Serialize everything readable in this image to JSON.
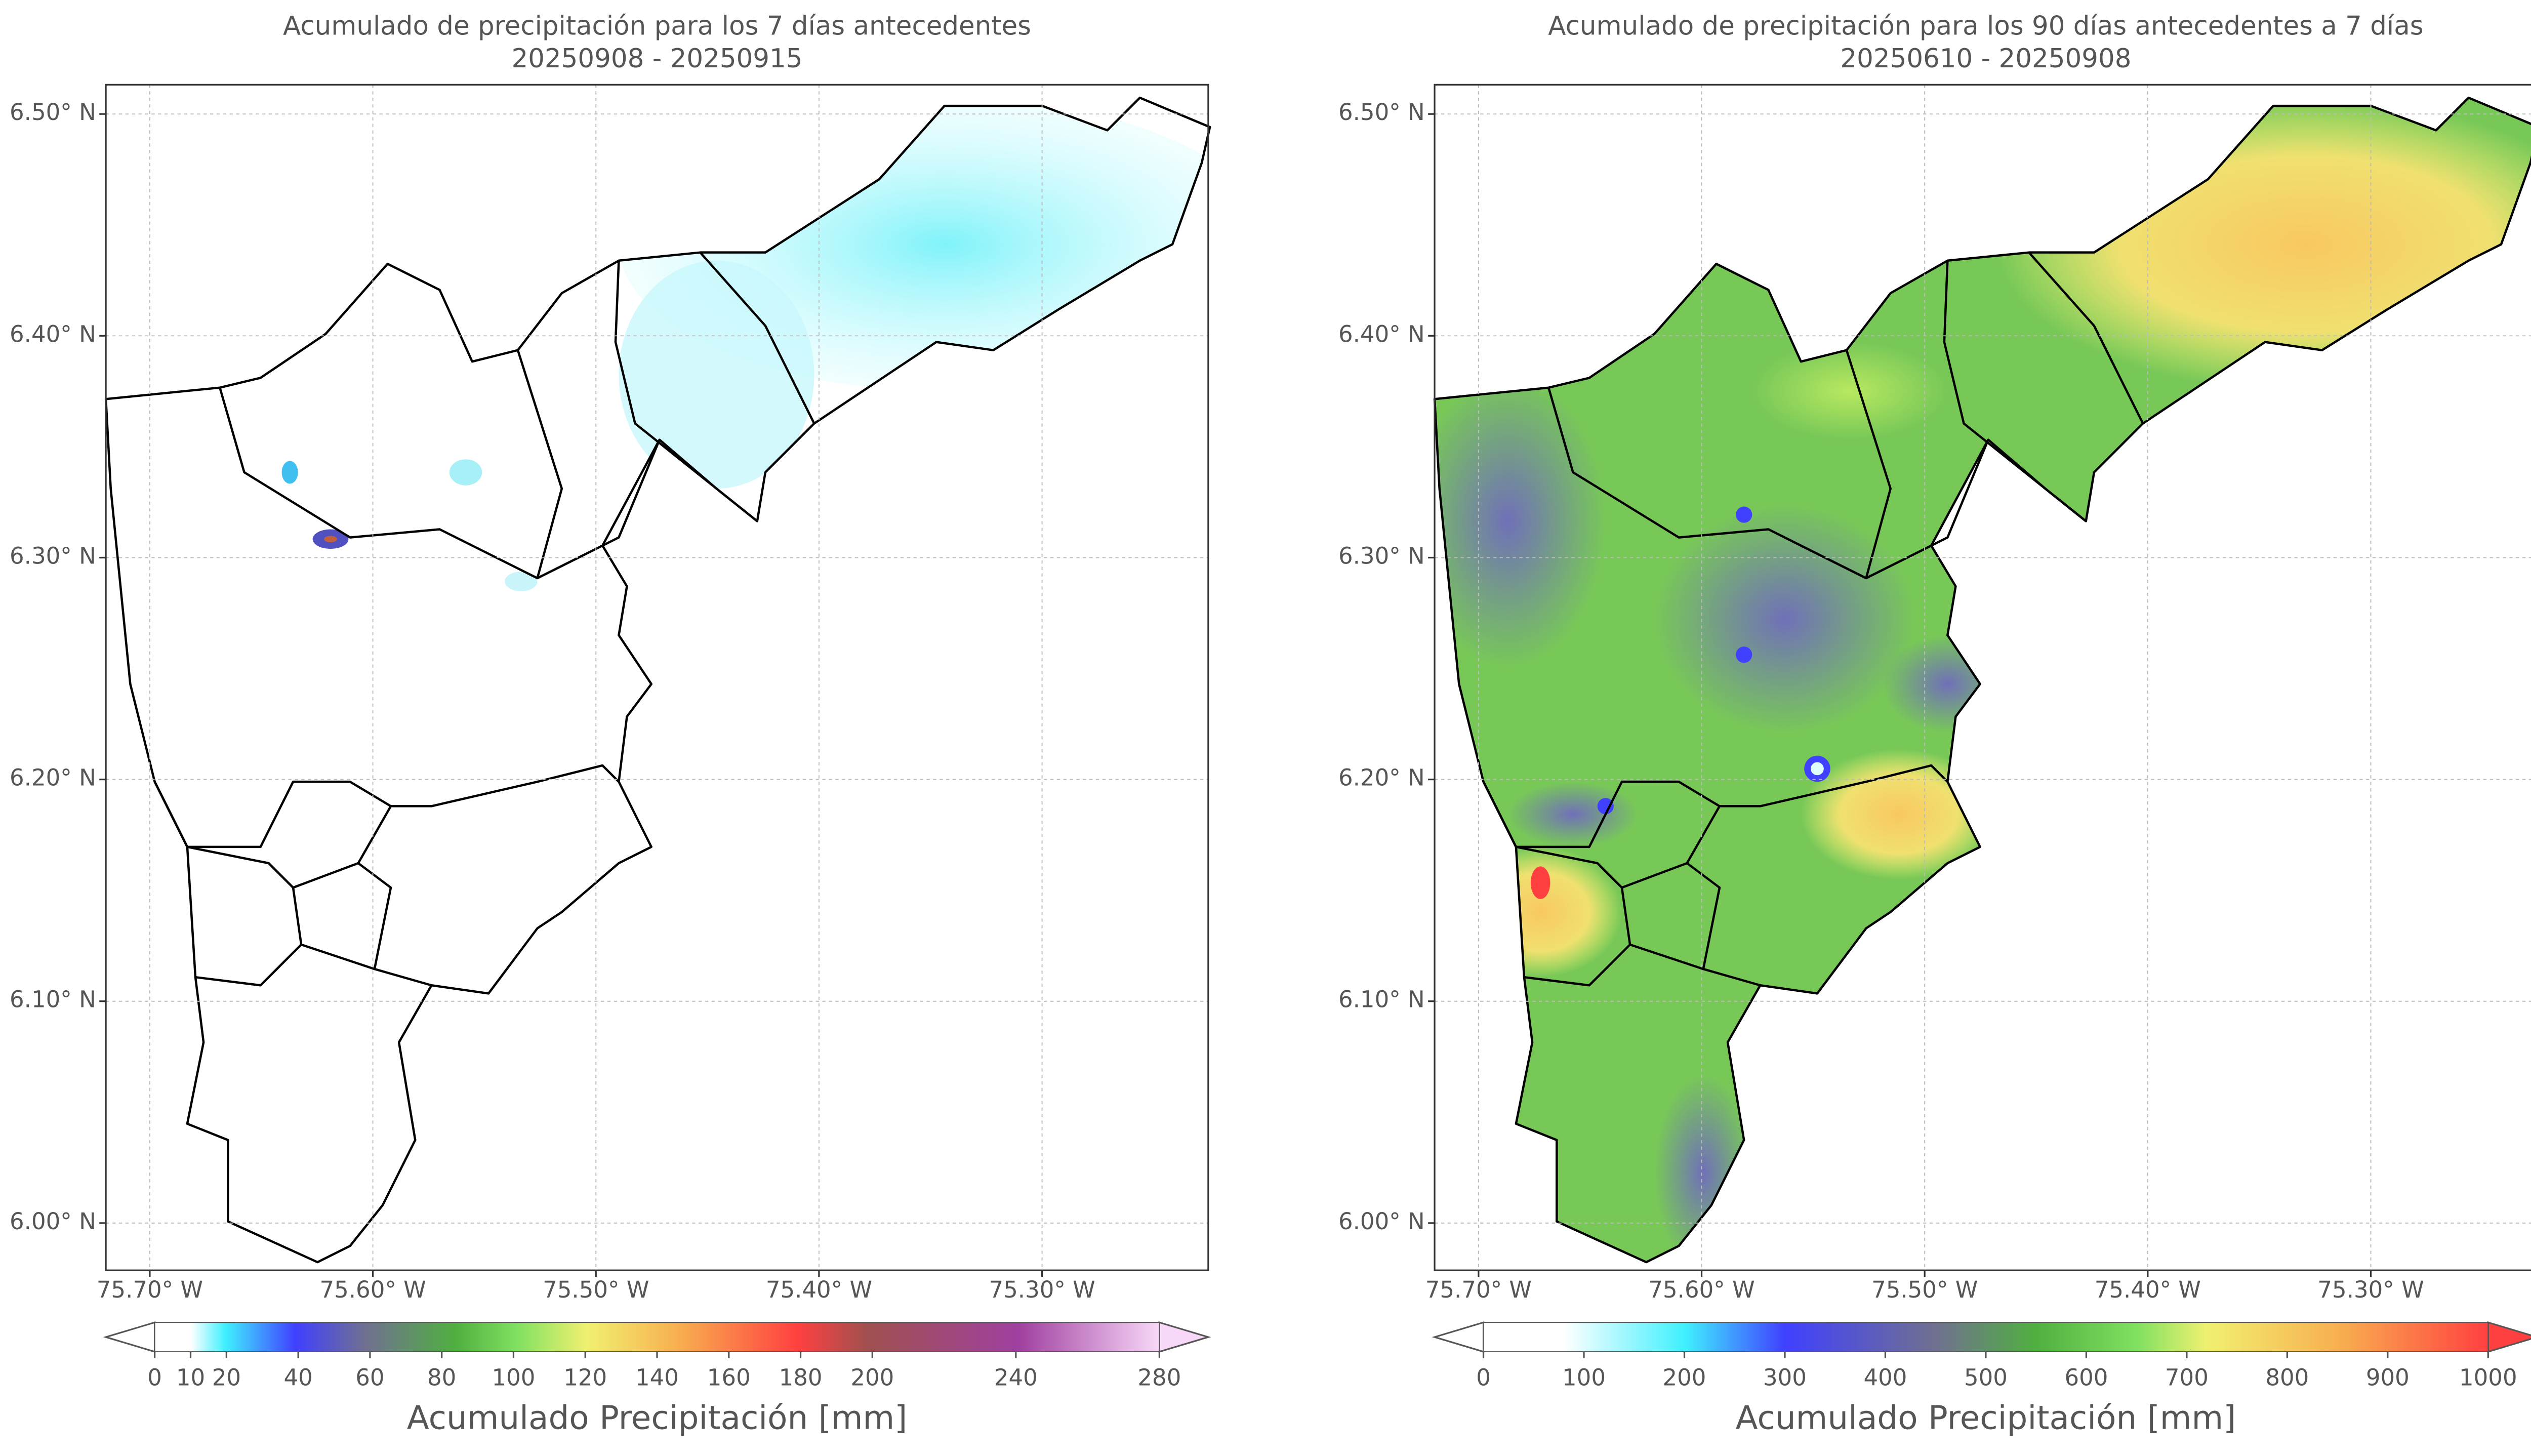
{
  "panels": [
    {
      "title": "Acumulado de precipitación para los 7 días antecedentes",
      "subtitle": "20250908 - 20250915",
      "xlim": [
        -75.7197,
        -75.2255
      ],
      "ylim": [
        5.9787,
        6.5132
      ],
      "xticks": [
        {
          "value": -75.7,
          "label": "75.70° W"
        },
        {
          "value": -75.6,
          "label": "75.60° W"
        },
        {
          "value": -75.5,
          "label": "75.50° W"
        },
        {
          "value": -75.4,
          "label": "75.40° W"
        },
        {
          "value": -75.3,
          "label": "75.30° W"
        }
      ],
      "yticks": [
        {
          "value": 6.0,
          "label": "6.00° N"
        },
        {
          "value": 6.1,
          "label": "6.10° N"
        },
        {
          "value": 6.2,
          "label": "6.20° N"
        },
        {
          "value": 6.3,
          "label": "6.30° N"
        },
        {
          "value": 6.4,
          "label": "6.40° N"
        },
        {
          "value": 6.5,
          "label": "6.50° N"
        }
      ],
      "colorbar": {
        "label": "Acumulado Precipitación [mm]",
        "lim": [
          0,
          280
        ],
        "ticks": [
          0,
          10,
          20,
          40,
          60,
          80,
          100,
          120,
          140,
          160,
          180,
          200,
          240,
          280
        ]
      }
    },
    {
      "title": "Acumulado de precipitación para los 90 días antecedentes a 7 días",
      "subtitle": "20250610 - 20250908",
      "xlim": [
        -75.7197,
        -75.2255
      ],
      "ylim": [
        5.9787,
        6.5132
      ],
      "xticks": [
        {
          "value": -75.7,
          "label": "75.70° W"
        },
        {
          "value": -75.6,
          "label": "75.60° W"
        },
        {
          "value": -75.5,
          "label": "75.50° W"
        },
        {
          "value": -75.4,
          "label": "75.40° W"
        },
        {
          "value": -75.3,
          "label": "75.30° W"
        }
      ],
      "yticks": [
        {
          "value": 6.0,
          "label": "6.00° N"
        },
        {
          "value": 6.1,
          "label": "6.10° N"
        },
        {
          "value": 6.2,
          "label": "6.20° N"
        },
        {
          "value": 6.3,
          "label": "6.30° N"
        },
        {
          "value": 6.4,
          "label": "6.40° N"
        },
        {
          "value": 6.5,
          "label": "6.50° N"
        }
      ],
      "colorbar": {
        "label": "Acumulado Precipitación [mm]",
        "lim": [
          0,
          1000
        ],
        "ticks": [
          0,
          100,
          200,
          300,
          400,
          500,
          600,
          700,
          800,
          900,
          1000
        ]
      }
    }
  ]
}
